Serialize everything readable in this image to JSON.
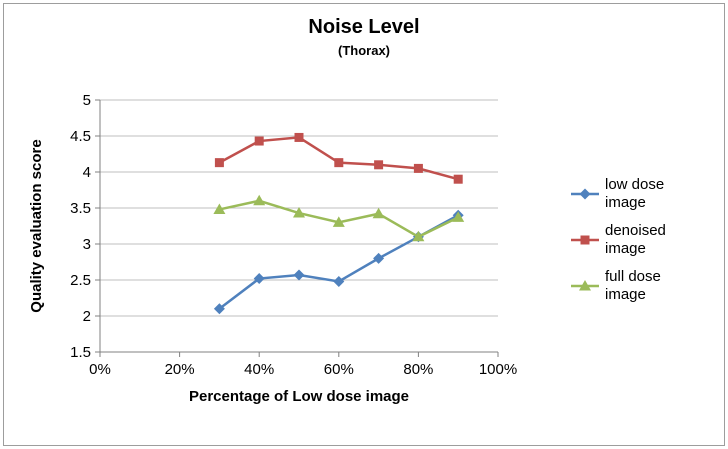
{
  "window": {
    "background": "#ffffff",
    "border_color": "#9d9d9d"
  },
  "chart_data": {
    "type": "line",
    "title": "Noise Level",
    "subtitle": "(Thorax)",
    "xlabel": "Percentage of Low dose image",
    "ylabel": "Quality evaluation score",
    "x": [
      30,
      40,
      50,
      60,
      70,
      80,
      90
    ],
    "series": [
      {
        "name": "low dose image",
        "color": "#4F81BD",
        "marker": "diamond",
        "values": [
          2.1,
          2.52,
          2.57,
          2.48,
          2.8,
          3.1,
          3.4
        ]
      },
      {
        "name": "denoised image",
        "color": "#C0504D",
        "marker": "square",
        "values": [
          4.13,
          4.43,
          4.48,
          4.13,
          4.1,
          4.05,
          3.9
        ]
      },
      {
        "name": "full dose image",
        "color": "#9BBB59",
        "marker": "triangle",
        "values": [
          3.48,
          3.6,
          3.43,
          3.3,
          3.42,
          3.1,
          3.37
        ]
      }
    ],
    "xlim": [
      0,
      100
    ],
    "ylim": [
      1.5,
      5
    ],
    "xticks": [
      0,
      20,
      40,
      60,
      80,
      100
    ],
    "xtick_labels": [
      "0%",
      "20%",
      "40%",
      "60%",
      "80%",
      "100%"
    ],
    "yticks": [
      1.5,
      2,
      2.5,
      3,
      3.5,
      4,
      4.5,
      5
    ],
    "ytick_labels": [
      "1.5",
      "2",
      "2.5",
      "3",
      "3.5",
      "4",
      "4.5",
      "5"
    ],
    "grid": true,
    "legend_position": "right",
    "grid_color": "#bfbfbf",
    "axis_color": "#808080",
    "text_color": "#000000"
  }
}
